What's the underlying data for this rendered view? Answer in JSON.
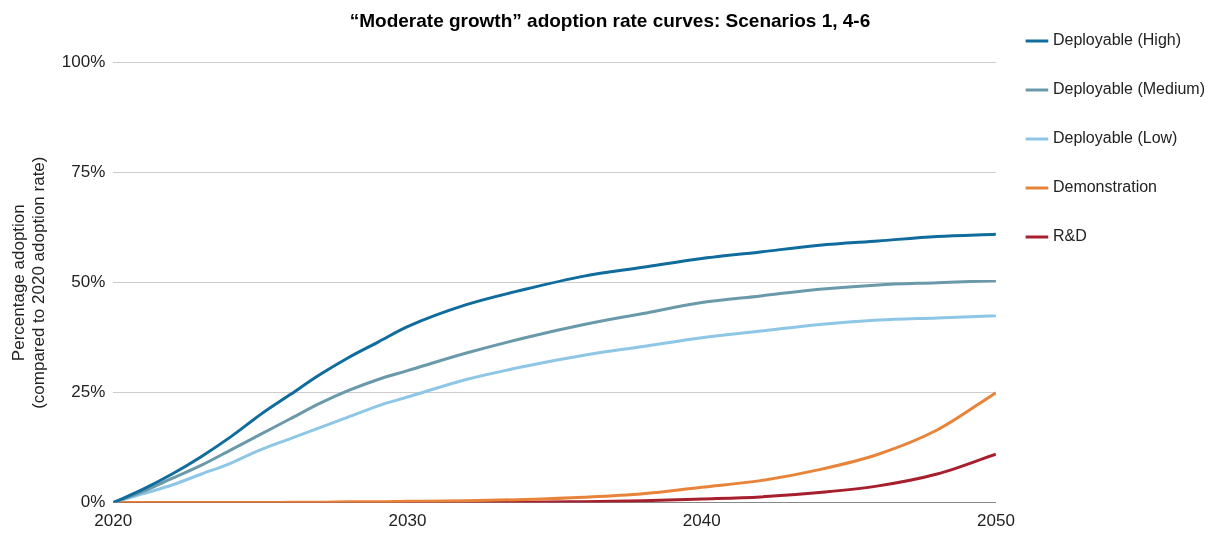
{
  "chart_data": {
    "type": "line",
    "title": "“Moderate growth” adoption rate curves: Scenarios 1, 4-6",
    "ylabel": "Percentage adoption\n(compared to 2020 adoption rate)",
    "x": [
      2020,
      2021,
      2022,
      2023,
      2024,
      2025,
      2026,
      2027,
      2028,
      2029,
      2030,
      2032,
      2034,
      2036,
      2038,
      2040,
      2042,
      2044,
      2046,
      2048,
      2050
    ],
    "series": [
      {
        "name": "Deployable (High)",
        "color": "#0f6c9c",
        "values": [
          0,
          3,
          6.5,
          10.5,
          15,
          20,
          24.5,
          29,
          33,
          36.5,
          40,
          45,
          48.5,
          51.5,
          53.5,
          55.5,
          57,
          58.5,
          59.5,
          60.5,
          61
        ]
      },
      {
        "name": "Deployable (Medium)",
        "color": "#6a9aaa",
        "values": [
          0,
          2.5,
          5.5,
          8.5,
          12,
          15.5,
          19,
          22.5,
          25.5,
          28,
          30,
          34,
          37.5,
          40.5,
          43,
          45.5,
          47,
          48.5,
          49.5,
          50,
          50.5
        ]
      },
      {
        "name": "Deployable (Low)",
        "color": "#8ec6e6",
        "values": [
          0,
          2,
          4,
          6.5,
          9,
          12,
          14.5,
          17,
          19.5,
          22,
          24,
          28,
          31,
          33.5,
          35.5,
          37.5,
          39,
          40.5,
          41.5,
          42,
          42.5
        ]
      },
      {
        "name": "Demonstration",
        "color": "#e8833a",
        "values": [
          0,
          0,
          0,
          0,
          0,
          0,
          0.1,
          0.1,
          0.2,
          0.2,
          0.3,
          0.4,
          0.7,
          1.2,
          2,
          3.5,
          5,
          7.5,
          11,
          16.5,
          25
        ]
      },
      {
        "name": "R&D",
        "color": "#a71e2c",
        "values": [
          0,
          0,
          0,
          0,
          0,
          0,
          0,
          0,
          0,
          0,
          0,
          0.1,
          0.1,
          0.2,
          0.4,
          0.8,
          1.3,
          2.3,
          3.8,
          6.5,
          11
        ]
      }
    ],
    "xlim": [
      2020,
      2050
    ],
    "xticks": [
      2020,
      2030,
      2040,
      2050
    ],
    "ylim": [
      0,
      100
    ],
    "yticks": [
      {
        "value": 0,
        "label": "0%"
      },
      {
        "value": 25,
        "label": "25%"
      },
      {
        "value": 50,
        "label": "50%"
      },
      {
        "value": 75,
        "label": "75%"
      },
      {
        "value": 100,
        "label": "100%"
      }
    ],
    "grid": "y",
    "legend": "right",
    "marker": "none",
    "line_style": "solid"
  }
}
